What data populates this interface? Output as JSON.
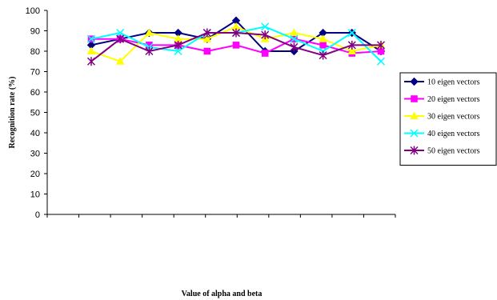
{
  "chart_data": {
    "type": "line",
    "title": "",
    "xlabel": "Value of alpha and beta",
    "ylabel": "Recognition rate (%)",
    "ylim": [
      0,
      100
    ],
    "yticks": [
      0,
      10,
      20,
      30,
      40,
      50,
      60,
      70,
      80,
      90,
      100
    ],
    "categories": [
      "",
      "",
      "",
      "",
      "",
      "",
      "",
      "",
      "",
      "",
      ""
    ],
    "grid": false,
    "legend_position": "right",
    "series": [
      {
        "name": "10 eigen vectors",
        "color": "#000080",
        "marker": "diamond",
        "values": [
          83,
          86,
          89,
          89,
          86,
          95,
          80,
          80,
          89,
          89,
          80
        ]
      },
      {
        "name": "20 eigen vectors",
        "color": "#ff00ff",
        "marker": "square",
        "values": [
          86,
          86,
          83,
          83,
          80,
          83,
          79,
          86,
          83,
          79,
          80
        ]
      },
      {
        "name": "30 eigen vectors",
        "color": "#ffff00",
        "marker": "triangle",
        "values": [
          80,
          75,
          89,
          86,
          86,
          92,
          86,
          89,
          86,
          80,
          83
        ]
      },
      {
        "name": "40 eigen vectors",
        "color": "#00ffff",
        "marker": "x",
        "values": [
          86,
          89,
          82,
          80,
          89,
          89,
          92,
          86,
          80,
          89,
          75
        ]
      },
      {
        "name": "50 eigen vectors",
        "color": "#800080",
        "marker": "star",
        "values": [
          75,
          86,
          80,
          83,
          89,
          89,
          88,
          82,
          78,
          83,
          83
        ]
      }
    ]
  }
}
